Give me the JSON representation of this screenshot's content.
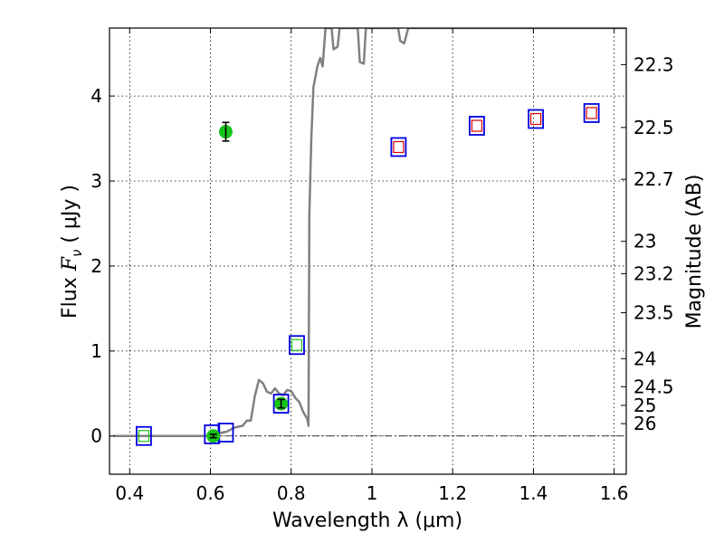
{
  "chart_data": {
    "type": "scatter",
    "title": "",
    "xlabel": "Wavelength  λ (μm)",
    "ylabel_parts": {
      "prefix": "Flux  ",
      "symbol": "F",
      "subscript": "ν",
      "unit": "  ( μJy )"
    },
    "ylabel_right": "Magnitude (AB)",
    "xlim": [
      0.35,
      1.63
    ],
    "ylim": [
      -0.45,
      4.8
    ],
    "grid": true,
    "x_ticks": [
      0.4,
      0.6,
      0.8,
      1.0,
      1.2,
      1.4,
      1.6
    ],
    "x_tick_labels": [
      "0.4",
      "0.6",
      "0.8",
      "1",
      "1.2",
      "1.4",
      "1.6"
    ],
    "y_ticks": [
      0,
      1,
      2,
      3,
      4
    ],
    "y_tick_labels": [
      "0",
      "1",
      "2",
      "3",
      "4"
    ],
    "mag_ticks": [
      {
        "label": "22.3",
        "flux": 4.37
      },
      {
        "label": "22.5",
        "flux": 3.63
      },
      {
        "label": "22.7",
        "flux": 3.02
      },
      {
        "label": "23",
        "flux": 2.29
      },
      {
        "label": "23.2",
        "flux": 1.91
      },
      {
        "label": "23.5",
        "flux": 1.45
      },
      {
        "label": "24",
        "flux": 0.91
      },
      {
        "label": "24.5",
        "flux": 0.58
      },
      {
        "label": "25",
        "flux": 0.36
      },
      {
        "label": "26",
        "flux": 0.145
      }
    ],
    "sed_model": {
      "color": "#808080",
      "points": [
        [
          0.36,
          0.0
        ],
        [
          0.6,
          0.0
        ],
        [
          0.62,
          0.03
        ],
        [
          0.64,
          0.05
        ],
        [
          0.66,
          0.1
        ],
        [
          0.68,
          0.12
        ],
        [
          0.69,
          0.18
        ],
        [
          0.7,
          0.18
        ],
        [
          0.71,
          0.47
        ],
        [
          0.72,
          0.66
        ],
        [
          0.73,
          0.62
        ],
        [
          0.74,
          0.52
        ],
        [
          0.75,
          0.5
        ],
        [
          0.76,
          0.56
        ],
        [
          0.77,
          0.5
        ],
        [
          0.78,
          0.48
        ],
        [
          0.79,
          0.54
        ],
        [
          0.8,
          0.53
        ],
        [
          0.81,
          0.45
        ],
        [
          0.82,
          0.4
        ],
        [
          0.83,
          0.28
        ],
        [
          0.84,
          0.2
        ],
        [
          0.843,
          0.12
        ],
        [
          0.845,
          2.6
        ],
        [
          0.85,
          3.5
        ],
        [
          0.855,
          4.1
        ],
        [
          0.865,
          4.35
        ],
        [
          0.872,
          4.45
        ],
        [
          0.878,
          4.35
        ],
        [
          0.885,
          4.8
        ],
        [
          0.9,
          4.8
        ],
        [
          0.905,
          4.55
        ],
        [
          0.915,
          4.58
        ],
        [
          0.92,
          4.8
        ],
        [
          0.965,
          4.8
        ],
        [
          0.97,
          4.4
        ],
        [
          0.98,
          4.38
        ],
        [
          0.985,
          4.8
        ],
        [
          1.065,
          4.8
        ],
        [
          1.07,
          4.65
        ],
        [
          1.08,
          4.62
        ],
        [
          1.09,
          4.8
        ],
        [
          1.63,
          4.8
        ]
      ]
    },
    "series": [
      {
        "name": "observed",
        "style": "green circle with error bar",
        "color": "#18c418",
        "points": [
          {
            "x": 0.607,
            "y": 0.0,
            "err": 0.02
          },
          {
            "x": 0.638,
            "y": 3.58,
            "err": 0.11
          },
          {
            "x": 0.775,
            "y": 0.38,
            "err": 0.05
          }
        ]
      },
      {
        "name": "model_photometry",
        "style": "blue open square",
        "color": "#0000dd",
        "points": [
          {
            "x": 0.435,
            "y": 0.0
          },
          {
            "x": 0.604,
            "y": 0.02
          },
          {
            "x": 0.638,
            "y": 0.04
          },
          {
            "x": 0.775,
            "y": 0.38
          },
          {
            "x": 0.814,
            "y": 1.07
          },
          {
            "x": 1.066,
            "y": 3.4
          },
          {
            "x": 1.26,
            "y": 3.65
          },
          {
            "x": 1.406,
            "y": 3.73
          },
          {
            "x": 1.544,
            "y": 3.8
          }
        ]
      },
      {
        "name": "filter_synthetic",
        "style": "small open square",
        "color_red": "#dd0000",
        "color_green": "#18c418",
        "points": [
          {
            "x": 0.435,
            "y": 0.0,
            "color": "green"
          },
          {
            "x": 0.814,
            "y": 1.07,
            "color": "green"
          },
          {
            "x": 1.066,
            "y": 3.4,
            "color": "red"
          },
          {
            "x": 1.26,
            "y": 3.65,
            "color": "red"
          },
          {
            "x": 1.406,
            "y": 3.73,
            "color": "red"
          },
          {
            "x": 1.544,
            "y": 3.8,
            "color": "red"
          }
        ]
      }
    ],
    "zero_line": {
      "y": 0,
      "style": "dash-dot"
    }
  }
}
